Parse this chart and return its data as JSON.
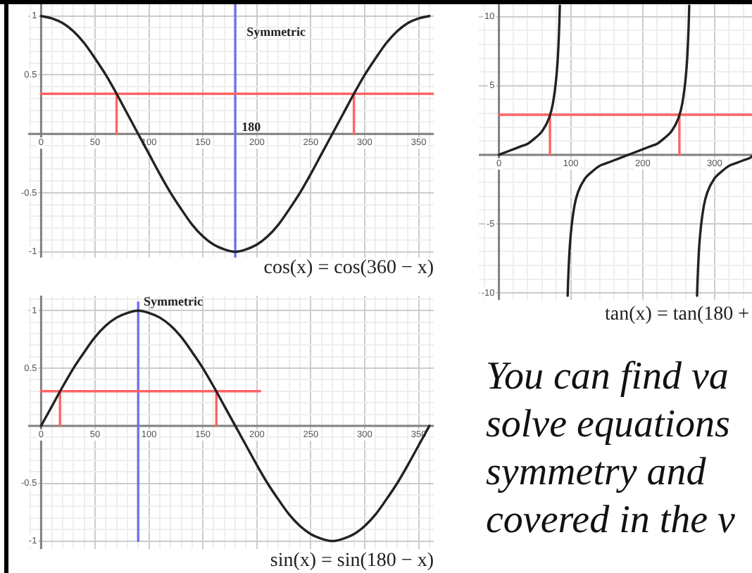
{
  "chart_data": [
    {
      "type": "line",
      "title": "cos(x) = cos(360 − x)",
      "xlim": [
        -12,
        364
      ],
      "ylim": [
        -1.05,
        1.1
      ],
      "xticks": [
        {
          "value": -10,
          "label": null
        },
        0,
        {
          "value": 10,
          "label": null
        },
        {
          "value": 20,
          "label": null
        },
        {
          "value": 30,
          "label": null
        },
        {
          "value": 40,
          "label": null
        },
        50,
        {
          "value": 60,
          "label": null
        },
        {
          "value": 70,
          "label": null
        },
        {
          "value": 80,
          "label": null
        },
        {
          "value": 90,
          "label": null
        },
        100,
        {
          "value": 110,
          "label": null
        },
        {
          "value": 120,
          "label": null
        },
        {
          "value": 130,
          "label": null
        },
        {
          "value": 140,
          "label": null
        },
        150,
        {
          "value": 160,
          "label": null
        },
        {
          "value": 170,
          "label": null
        },
        {
          "value": 180,
          "label": null
        },
        {
          "value": 190,
          "label": null
        },
        200,
        {
          "value": 210,
          "label": null
        },
        {
          "value": 220,
          "label": null
        },
        {
          "value": 230,
          "label": null
        },
        {
          "value": 240,
          "label": null
        },
        250,
        {
          "value": 260,
          "label": null
        },
        {
          "value": 270,
          "label": null
        },
        {
          "value": 280,
          "label": null
        },
        {
          "value": 290,
          "label": null
        },
        300,
        {
          "value": 310,
          "label": null
        },
        {
          "value": 320,
          "label": null
        },
        {
          "value": 330,
          "label": null
        },
        {
          "value": 340,
          "label": null
        },
        350,
        {
          "value": 360,
          "label": null
        }
      ],
      "yticks": [
        -1,
        {
          "value": -0.9,
          "label": null
        },
        {
          "value": -0.8,
          "label": null
        },
        {
          "value": -0.7,
          "label": null
        },
        {
          "value": -0.6,
          "label": null
        },
        -0.5,
        {
          "value": -0.4,
          "label": null
        },
        {
          "value": -0.3,
          "label": null
        },
        {
          "value": -0.2,
          "label": null
        },
        {
          "value": -0.1,
          "label": null
        },
        {
          "value": 0,
          "label": null
        },
        {
          "value": 0.1,
          "label": null
        },
        {
          "value": 0.2,
          "label": null
        },
        {
          "value": 0.3,
          "label": null
        },
        {
          "value": 0.4,
          "label": null
        },
        0.5,
        {
          "value": 0.6,
          "label": null
        },
        {
          "value": 0.7,
          "label": null
        },
        {
          "value": 0.8,
          "label": null
        },
        {
          "value": 0.9,
          "label": null
        },
        1
      ],
      "grid": true,
      "series": [
        {
          "color": "#222222",
          "x": [
            0,
            10,
            20,
            30,
            40,
            50,
            60,
            70,
            80,
            90,
            100,
            110,
            120,
            130,
            140,
            150,
            160,
            170,
            180,
            190,
            200,
            210,
            220,
            230,
            240,
            250,
            260,
            270,
            280,
            290,
            300,
            310,
            320,
            330,
            340,
            350,
            360
          ],
          "values": [
            1,
            0.98,
            0.94,
            0.87,
            0.77,
            0.64,
            0.5,
            0.34,
            0.17,
            0,
            -0.17,
            -0.34,
            -0.5,
            -0.64,
            -0.77,
            -0.87,
            -0.94,
            -0.98,
            -1,
            -0.98,
            -0.94,
            -0.87,
            -0.77,
            -0.64,
            -0.5,
            -0.34,
            -0.17,
            0,
            0.17,
            0.34,
            0.5,
            0.64,
            0.77,
            0.87,
            0.94,
            0.98,
            1
          ]
        },
        {
          "color": "#ff6464",
          "x": [
            0,
            364
          ],
          "values": [
            0.34,
            0.34
          ]
        },
        {
          "color": "#ff6464",
          "x": [
            70,
            70
          ],
          "values": [
            0,
            0.34
          ]
        },
        {
          "color": "#ff6464",
          "x": [
            290,
            290
          ],
          "values": [
            0,
            0.34
          ]
        }
      ],
      "ref_lines": [
        {
          "axis": "x",
          "value": 180,
          "color": "#7070f0",
          "label": "Symmetric"
        }
      ],
      "annotations": [
        {
          "text": "180",
          "x": 186,
          "y": 0
        }
      ]
    },
    {
      "type": "line",
      "title": "sin(x) = sin(180 − x)",
      "xlim": [
        -12,
        364
      ],
      "ylim": [
        -1.07,
        1.13
      ],
      "xticks": [
        {
          "value": -10,
          "label": null
        },
        0,
        {
          "value": 10,
          "label": null
        },
        {
          "value": 20,
          "label": null
        },
        {
          "value": 30,
          "label": null
        },
        {
          "value": 40,
          "label": null
        },
        50,
        {
          "value": 60,
          "label": null
        },
        {
          "value": 70,
          "label": null
        },
        {
          "value": 80,
          "label": null
        },
        {
          "value": 90,
          "label": null
        },
        100,
        {
          "value": 110,
          "label": null
        },
        {
          "value": 120,
          "label": null
        },
        {
          "value": 130,
          "label": null
        },
        {
          "value": 140,
          "label": null
        },
        150,
        {
          "value": 160,
          "label": null
        },
        {
          "value": 170,
          "label": null
        },
        {
          "value": 180,
          "label": null
        },
        {
          "value": 190,
          "label": null
        },
        200,
        {
          "value": 210,
          "label": null
        },
        {
          "value": 220,
          "label": null
        },
        {
          "value": 230,
          "label": null
        },
        {
          "value": 240,
          "label": null
        },
        250,
        {
          "value": 260,
          "label": null
        },
        {
          "value": 270,
          "label": null
        },
        {
          "value": 280,
          "label": null
        },
        {
          "value": 290,
          "label": null
        },
        300,
        {
          "value": 310,
          "label": null
        },
        {
          "value": 320,
          "label": null
        },
        {
          "value": 330,
          "label": null
        },
        {
          "value": 340,
          "label": null
        },
        350,
        {
          "value": 360,
          "label": null
        }
      ],
      "yticks": [
        -1,
        {
          "value": -0.9,
          "label": null
        },
        {
          "value": -0.8,
          "label": null
        },
        {
          "value": -0.7,
          "label": null
        },
        {
          "value": -0.6,
          "label": null
        },
        -0.5,
        {
          "value": -0.4,
          "label": null
        },
        {
          "value": -0.3,
          "label": null
        },
        {
          "value": -0.2,
          "label": null
        },
        {
          "value": -0.1,
          "label": null
        },
        {
          "value": 0,
          "label": null
        },
        {
          "value": 0.1,
          "label": null
        },
        {
          "value": 0.2,
          "label": null
        },
        {
          "value": 0.3,
          "label": null
        },
        {
          "value": 0.4,
          "label": null
        },
        0.5,
        {
          "value": 0.6,
          "label": null
        },
        {
          "value": 0.7,
          "label": null
        },
        {
          "value": 0.8,
          "label": null
        },
        {
          "value": 0.9,
          "label": null
        },
        1,
        {
          "value": 1.1,
          "label": null
        }
      ],
      "grid": true,
      "series": [
        {
          "color": "#222222",
          "x": [
            0,
            10,
            20,
            30,
            40,
            50,
            60,
            70,
            80,
            90,
            100,
            110,
            120,
            130,
            140,
            150,
            160,
            170,
            180,
            190,
            200,
            210,
            220,
            230,
            240,
            250,
            260,
            270,
            280,
            290,
            300,
            310,
            320,
            330,
            340,
            350,
            360
          ],
          "values": [
            0,
            0.17,
            0.34,
            0.5,
            0.64,
            0.77,
            0.87,
            0.94,
            0.98,
            1,
            0.98,
            0.94,
            0.87,
            0.77,
            0.64,
            0.5,
            0.34,
            0.17,
            0,
            -0.17,
            -0.34,
            -0.5,
            -0.64,
            -0.77,
            -0.87,
            -0.94,
            -0.98,
            -1,
            -0.98,
            -0.94,
            -0.87,
            -0.77,
            -0.64,
            -0.5,
            -0.34,
            -0.17,
            0
          ]
        },
        {
          "color": "#ff6464",
          "x": [
            0,
            203
          ],
          "values": [
            0.3,
            0.3
          ]
        },
        {
          "color": "#ff6464",
          "x": [
            17.5,
            17.5
          ],
          "values": [
            0,
            0.3
          ]
        },
        {
          "color": "#ff6464",
          "x": [
            162.5,
            162.5
          ],
          "values": [
            0,
            0.3
          ]
        },
        {
          "color": "#7070f0",
          "x": [
            90,
            90
          ],
          "values": [
            1.07,
            -1
          ]
        }
      ],
      "annotations": [
        {
          "text": "Symmetric",
          "x": 95,
          "y": 1.02
        }
      ]
    },
    {
      "type": "line",
      "title": "tan(x) = tan(180 +",
      "xlim": [
        -28,
        352
      ],
      "ylim": [
        -10.5,
        10.9
      ],
      "xticks": [
        {
          "value": -20,
          "label": null
        },
        0,
        {
          "value": 20,
          "label": null
        },
        {
          "value": 40,
          "label": null
        },
        {
          "value": 60,
          "label": null
        },
        {
          "value": 80,
          "label": null
        },
        100,
        {
          "value": 120,
          "label": null
        },
        {
          "value": 140,
          "label": null
        },
        {
          "value": 160,
          "label": null
        },
        {
          "value": 180,
          "label": null
        },
        200,
        {
          "value": 220,
          "label": null
        },
        {
          "value": 240,
          "label": null
        },
        {
          "value": 260,
          "label": null
        },
        {
          "value": 280,
          "label": null
        },
        300,
        {
          "value": 320,
          "label": null
        },
        {
          "value": 340,
          "label": null
        }
      ],
      "yticks": [
        -10,
        {
          "value": -9,
          "label": null
        },
        {
          "value": -8,
          "label": null
        },
        {
          "value": -7,
          "label": null
        },
        {
          "value": -6,
          "label": null
        },
        -5,
        {
          "value": -4,
          "label": null
        },
        {
          "value": -3,
          "label": null
        },
        {
          "value": -2,
          "label": null
        },
        {
          "value": -1,
          "label": null
        },
        {
          "value": 0,
          "label": null
        },
        {
          "value": 1,
          "label": null
        },
        {
          "value": 2,
          "label": null
        },
        {
          "value": 3,
          "label": null
        },
        {
          "value": 4,
          "label": null
        },
        5,
        {
          "value": 6,
          "label": null
        },
        {
          "value": 7,
          "label": null
        },
        {
          "value": 8,
          "label": null
        },
        {
          "value": 9,
          "label": null
        },
        10
      ],
      "grid": true,
      "series": [
        {
          "color": "#222222",
          "x": [
            0,
            10,
            20,
            30,
            40,
            50,
            60,
            70,
            75,
            80,
            82,
            84,
            84.7,
            90,
            95.6,
            96,
            98,
            100,
            105,
            110,
            120,
            130,
            140,
            150,
            160,
            170,
            180,
            190,
            200,
            210,
            220,
            230,
            240,
            250,
            255,
            260,
            262,
            264,
            264.7,
            270,
            275.6,
            276,
            278,
            280,
            285,
            290,
            300,
            310,
            320,
            330,
            340,
            350,
            352
          ],
          "values": [
            0,
            0.2,
            0.4,
            0.6,
            0.8,
            1.2,
            1.7,
            2.7,
            3.7,
            5.7,
            7.1,
            9.5,
            10.8,
            null,
            -10.2,
            -9.5,
            -7.1,
            -5.7,
            -3.7,
            -2.7,
            -1.7,
            -1.2,
            -0.8,
            -0.6,
            -0.4,
            -0.2,
            0,
            0.2,
            0.4,
            0.6,
            0.8,
            1.2,
            1.7,
            2.7,
            3.7,
            5.7,
            7.1,
            9.5,
            10.8,
            null,
            -10.2,
            -9.5,
            -7.1,
            -5.7,
            -3.7,
            -2.7,
            -1.7,
            -1.2,
            -0.8,
            -0.6,
            -0.4,
            -0.2,
            -0.1
          ]
        },
        {
          "color": "#ff6464",
          "x": [
            0,
            352
          ],
          "values": [
            2.9,
            2.9
          ]
        },
        {
          "color": "#ff6464",
          "x": [
            71,
            71
          ],
          "values": [
            0,
            2.9
          ]
        },
        {
          "color": "#ff6464",
          "x": [
            251,
            251
          ],
          "values": [
            0,
            2.9
          ]
        }
      ]
    },
    {
      "type": "other",
      "annotations": [
        "You can find va",
        "solve equations",
        "symmetry and",
        "covered in the v"
      ]
    }
  ]
}
